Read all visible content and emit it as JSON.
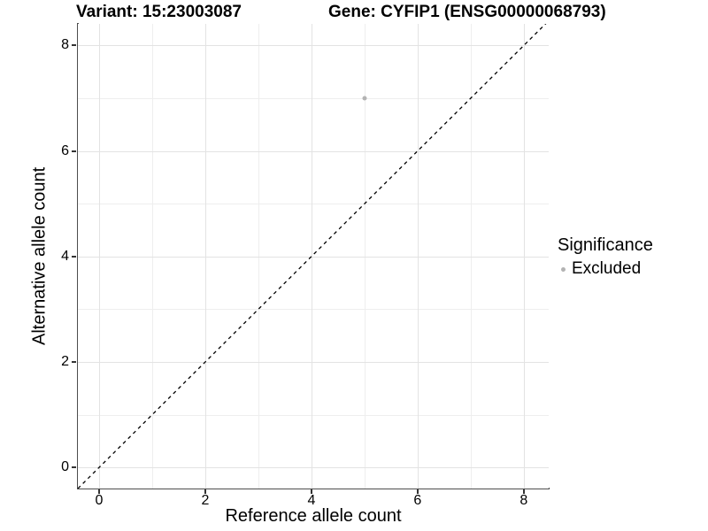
{
  "chart_data": {
    "type": "scatter",
    "title_left": "Variant: 15:23003087",
    "title_right": "Gene: CYFIP1 (ENSG00000068793)",
    "xlabel": "Reference allele count",
    "ylabel": "Alternative allele count",
    "xlim": [
      -0.4,
      8.47
    ],
    "ylim": [
      -0.4,
      8.41
    ],
    "x_major_ticks": [
      0,
      2,
      4,
      6,
      8
    ],
    "y_major_ticks": [
      0,
      2,
      4,
      6,
      8
    ],
    "x_minor_ticks": [
      1,
      3,
      5,
      7
    ],
    "y_minor_ticks": [
      1,
      3,
      5,
      7
    ],
    "grid": {
      "major_color": "#e3e3e3",
      "minor_color": "#eeeeee"
    },
    "reference_line": {
      "type": "identity",
      "style": "dashed",
      "color": "#000000"
    },
    "series": [
      {
        "name": "Excluded",
        "color": "#b3b3b3",
        "points": [
          {
            "x": 5,
            "y": 7
          }
        ]
      }
    ],
    "legend": {
      "title": "Significance",
      "position": "right",
      "entries": [
        {
          "label": "Excluded",
          "color": "#b3b3b3"
        }
      ]
    }
  },
  "colors": {
    "axis_line": "#4d4d4d",
    "tick_mark": "#333333",
    "text": "#000000",
    "background": "#ffffff"
  }
}
